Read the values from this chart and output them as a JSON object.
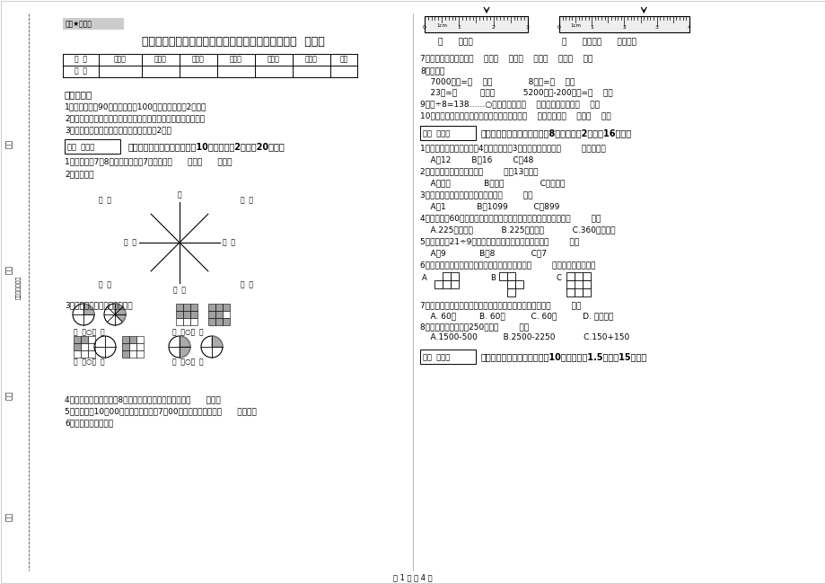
{
  "bg_color": "#ffffff",
  "title": "贵州省实验小学三年级数学上学期全真模拟考试试题  附答案",
  "secret_label": "绝密★启用前",
  "table_headers": [
    "题  号",
    "填空题",
    "选择题",
    "判断题",
    "计算题",
    "综合题",
    "应用题",
    "总分"
  ],
  "table_row": [
    "得  分",
    "",
    "",
    "",
    "",
    "",
    "",
    ""
  ],
  "notes_title": "考试须知：",
  "notes": [
    "1、考试时间：90分钟，满分为100分（含卷面分務2分）。",
    "2、请首先按要求在试卷的指定位置填写您的姓名、班级、学号。",
    "3、不要在试卷上乱写乱画，卷面不整洁扰2分。"
  ],
  "section1_header": "一、用心思考，正确填空（共10小题，每题2分，共20分）。",
  "section1_q1": "1、时针在的7和8之间，分针指坱7，这时是（      ）时（      ）分。",
  "section1_q2": "2、填一填。",
  "section1_q3": "3、看图写分数，并比较大小。",
  "section1_q4": "4、小明从一楼到三楼用8秒，照这样他从一楼到五楼用（      ）秒。",
  "section1_q5": "5、小林晚上10：00睡觉，第二天早上7：00起床，他一共睡了（      ）小时。",
  "section1_q6": "6、量出钉子的长度。",
  "ruler1_label": "（      ）毫米",
  "ruler2_label": "（      ）厘米（      ）毫米。",
  "right_q7": "7、常用的长度单位有（    ）、（    ）、（    ）、（    ）、（    ）。",
  "right_q8_title": "8、换算。",
  "right_q8_a": "    7000千克=（    ）吞              8千克=（    ）克",
  "right_q8_b": "    23吞=（         ）千克           5200千克-200千克=（    ）吞",
  "right_q9": "9、口÷8=138……○，余数最大填（    ），这时被除数是（    ）。",
  "right_q10": "10、在进位加法中，不管哪一位上的数相加满（    ），都要向（    ）进（    ）。",
  "section2_header": "二、反复比较，慎重选择（共8小题，每题2分，入16分）。",
  "s2q1": "1、一个长方形花坦的宽是4米，长是宽的3倍，花坦的面积是（        ）平方米。",
  "s2q1o": "    A、12        B、16        C、48",
  "s2q2": "2、按农历计算，有的年份（        ）朐13个月。",
  "s2q2o": "    A、一定             B、可能              C、不可能",
  "s2q3": "3、最小三位数和最大三位数的和是（        ）。",
  "s2q3o": "    A、1            B、1099          C、899",
  "s2q4": "4、把一根长60厘米的铁丝围成一个正方形，这个正方形的面积是（        ）。",
  "s2q4o": "    A.225平方分米           B.225平方厘米           C.360平方厘米",
  "s2q5": "5、要使「口21÷9」的商是三位数，「口」里只能填（        ）。",
  "s2q5o": "    A、9             B、8              C、7",
  "s2q6": "6、下列个图形中，每个小正方形都一样大，那么（        ）图形的周长最长。",
  "s2q7": "7、时针从上一个数字到相邻的下一个数字，经过的时间是（        ）。",
  "s2q7o": "    A. 60秒         B. 60分          C. 60时          D. 无法确定",
  "s2q8": "8、下面的结果刚好是250的是（        ）。",
  "s2q8o": "    A.1500-500          B.2500-2250           C.150+150",
  "section3_header": "三、仔细推敬，正确判断（入10小题，每题1.5分，入15分）。",
  "page_footer": "第 1 页 八 4 页",
  "score_box_label": "得分  评卷人",
  "left_labels": [
    "学校",
    "班级",
    "姓名",
    "学号"
  ],
  "seal_label": "座位（密封线）"
}
